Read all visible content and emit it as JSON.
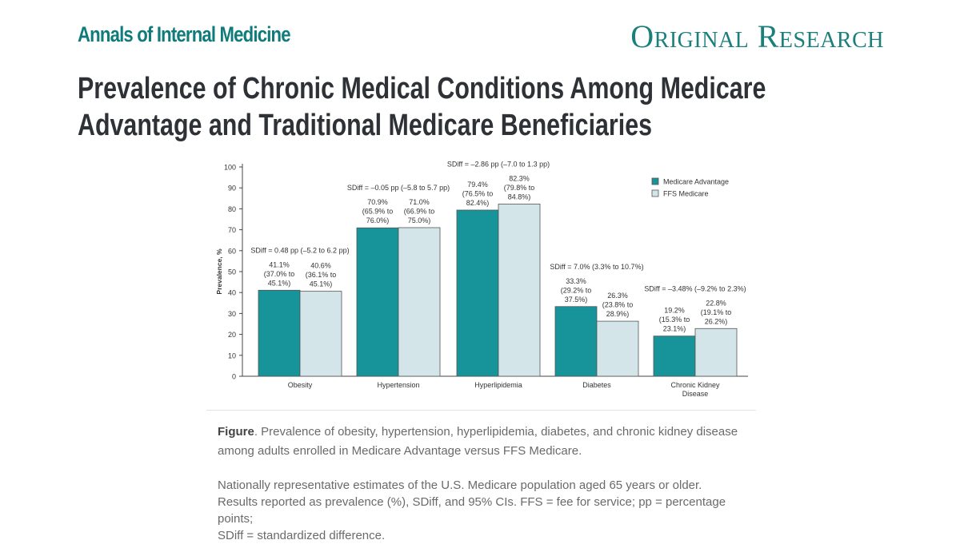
{
  "header": {
    "journal": "Annals of Internal Medicine",
    "section": "Original Research"
  },
  "title_line1": "Prevalence of Chronic Medical Conditions Among Medicare",
  "title_line2": "Advantage and Traditional Medicare Beneficiaries",
  "chart_data": {
    "type": "bar",
    "ylabel": "Prevalence, %",
    "ylim": [
      0,
      100
    ],
    "yticks": [
      0,
      10,
      20,
      30,
      40,
      50,
      60,
      70,
      80,
      90,
      100
    ],
    "categories": [
      "Obesity",
      "Hypertension",
      "Hyperlipidemia",
      "Diabetes",
      "Chronic Kidney Disease"
    ],
    "category_lines": [
      [
        "Obesity"
      ],
      [
        "Hypertension"
      ],
      [
        "Hyperlipidemia"
      ],
      [
        "Diabetes"
      ],
      [
        "Chronic Kidney",
        "Disease"
      ]
    ],
    "legend_position": "top-right",
    "series": [
      {
        "name": "Medicare Advantage",
        "color": "#17949a",
        "values": [
          41.1,
          70.9,
          79.4,
          33.3,
          19.2
        ],
        "labels": [
          [
            "41.1%",
            "(37.0% to",
            "45.1%)"
          ],
          [
            "70.9%",
            "(65.9% to",
            "76.0%)"
          ],
          [
            "79.4%",
            "(76.5% to",
            "82.4%)"
          ],
          [
            "33.3%",
            "(29.2% to",
            "37.5%)"
          ],
          [
            "19.2%",
            "(15.3% to",
            "23.1%)"
          ]
        ]
      },
      {
        "name": "FFS Medicare",
        "color": "#d3e5e8",
        "values": [
          40.6,
          71.0,
          82.3,
          26.3,
          22.8
        ],
        "labels": [
          [
            "40.6%",
            "(36.1% to",
            "45.1%)"
          ],
          [
            "71.0%",
            "(66.9% to",
            "75.0%)"
          ],
          [
            "82.3%",
            "(79.8% to",
            "84.8%)"
          ],
          [
            "26.3%",
            "(23.8% to",
            "28.9%)"
          ],
          [
            "22.8%",
            "(19.1% to",
            "26.2%)"
          ]
        ]
      }
    ],
    "annotations": [
      "SDiff = 0.48 pp (–5.2 to 6.2 pp)",
      "SDiff = –0.05 pp (–5.8 to 5.7 pp)",
      "SDiff = –2.86 pp (–7.0 to 1.3 pp)",
      "SDiff = 7.0% (3.3% to 10.7%)",
      "SDiff = –3.48% (–9.2% to 2.3%)"
    ]
  },
  "caption": {
    "label": "Figure",
    "text": ". Prevalence of obesity, hypertension, hyperlipidemia, diabetes, and chronic kidney disease among adults enrolled in Medicare Advantage versus FFS Medicare.",
    "note_line1": "Nationally representative estimates of the U.S. Medicare population aged 65 years or older.",
    "note_line2": "Results reported as prevalence (%), SDiff, and 95% CIs. FFS = fee for service; pp = percentage points;",
    "note_line3": "SDiff = standardized difference."
  }
}
